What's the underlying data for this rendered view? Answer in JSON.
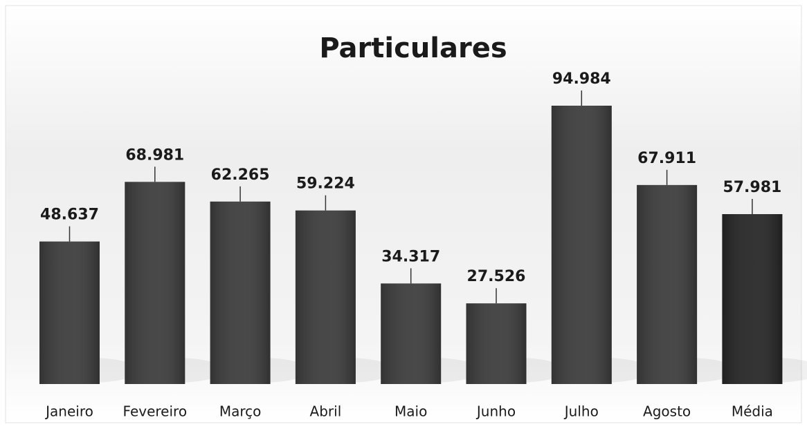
{
  "chart_data": {
    "type": "bar",
    "title": "Particulares",
    "categories": [
      "Janeiro",
      "Fevereiro",
      "Março",
      "Abril",
      "Maio",
      "Junho",
      "Julho",
      "Agosto",
      "Média"
    ],
    "values": [
      48637,
      68981,
      62265,
      59224,
      34317,
      27526,
      94984,
      67911,
      57981
    ],
    "value_labels": [
      "48.637",
      "68.981",
      "62.265",
      "59.224",
      "34.317",
      "27.526",
      "94.984",
      "67.911",
      "57.981"
    ],
    "colors": [
      "#3c3c3c",
      "#3c3c3c",
      "#3c3c3c",
      "#3c3c3c",
      "#3c3c3c",
      "#3c3c3c",
      "#3c3c3c",
      "#3c3c3c",
      "#262626"
    ]
  }
}
